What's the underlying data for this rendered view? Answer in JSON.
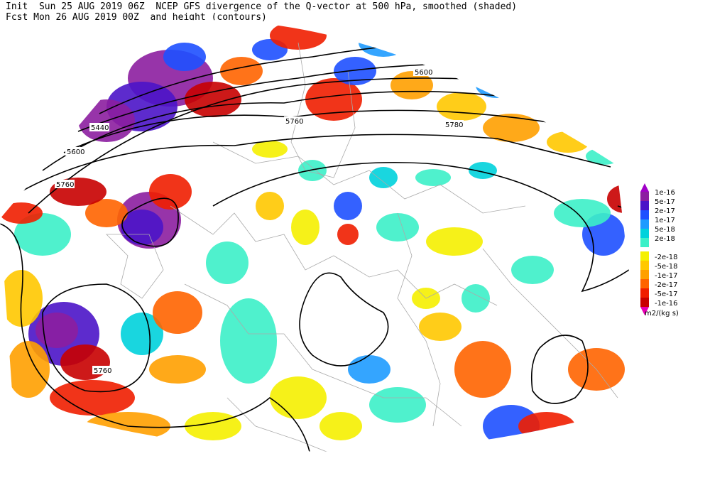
{
  "header": {
    "line1": "Init  Sun 25 AUG 2019 06Z  NCEP GFS divergence of the Q-vector at 500 hPa, smoothed (shaded)",
    "line2": "Fcst Mon 26 AUG 2019 00Z  and height (contours)"
  },
  "contour_labels": [
    "5440",
    "5600",
    "5760",
    "5760",
    "5600",
    "5780",
    "5760"
  ],
  "colorbar": {
    "top_color": "#a000c8",
    "bottom_color": "#e600b4",
    "unit": "m2/(kg s)",
    "levels": [
      {
        "label": "1e-16",
        "color": "#8c1ea0"
      },
      {
        "label": "5e-17",
        "color": "#4b14c8"
      },
      {
        "label": "2e-17",
        "color": "#1e50ff"
      },
      {
        "label": "1e-17",
        "color": "#1e9bff"
      },
      {
        "label": "5e-18",
        "color": "#00d2dc"
      },
      {
        "label": "2e-18",
        "color": "#3cf0c8"
      },
      {
        "label": "-2e-18",
        "color": "#f5f000"
      },
      {
        "label": "-5e-18",
        "color": "#ffc800"
      },
      {
        "label": "-1e-17",
        "color": "#ffa000"
      },
      {
        "label": "-2e-17",
        "color": "#ff6400"
      },
      {
        "label": "-5e-17",
        "color": "#f01e00"
      },
      {
        "label": "-1e-16",
        "color": "#c80000"
      }
    ]
  }
}
